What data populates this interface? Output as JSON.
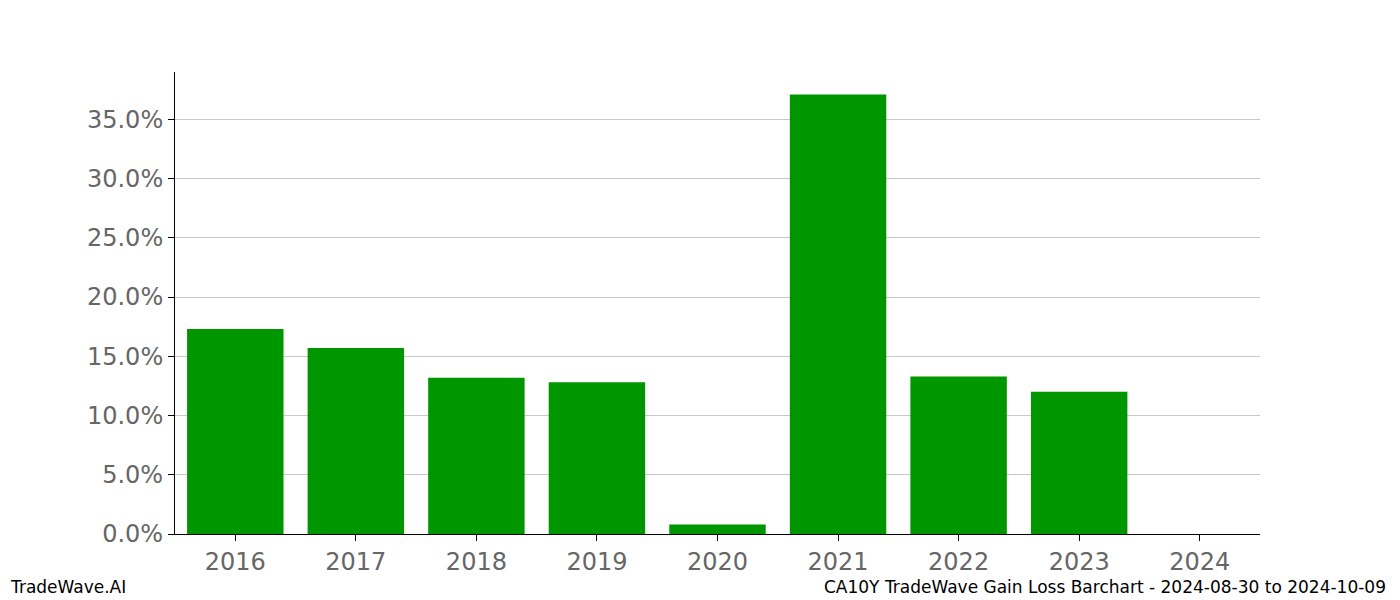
{
  "chart_data": {
    "type": "bar",
    "title": "CA10Y TradeWave Gain Loss Barchart - 2024-08-30 to 2024-10-09",
    "source": "TradeWave.AI",
    "categories": [
      "2016",
      "2017",
      "2018",
      "2019",
      "2020",
      "2021",
      "2022",
      "2023",
      "2024"
    ],
    "values": [
      17.3,
      15.7,
      13.2,
      12.8,
      0.8,
      37.1,
      13.3,
      12.0,
      0
    ],
    "color": "#009600",
    "ylim": [
      0,
      39
    ],
    "yticks": [
      {
        "value": 0,
        "label": "0.0%"
      },
      {
        "value": 5,
        "label": "5.0%"
      },
      {
        "value": 10,
        "label": "10.0%"
      },
      {
        "value": 15,
        "label": "15.0%"
      },
      {
        "value": 20,
        "label": "20.0%"
      },
      {
        "value": 25,
        "label": "25.0%"
      },
      {
        "value": 30,
        "label": "30.0%"
      },
      {
        "value": 35,
        "label": "35.0%"
      }
    ],
    "grid": true
  }
}
